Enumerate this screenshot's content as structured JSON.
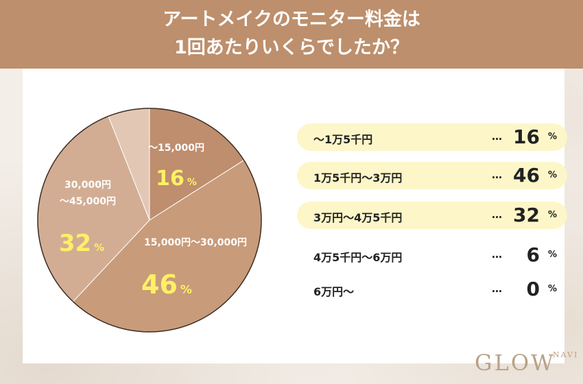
{
  "header": {
    "title_line1": "アートメイクのモニター料金は",
    "title_line2": "1回あたりいくらでしたか？"
  },
  "colors": {
    "header": "#bd8f6c",
    "slice_15000": "#be8e6e",
    "slice_30000": "#c89b7a",
    "slice_45000": "#d2ad94",
    "slice_60000": "#e3c7b5",
    "pct_yellow": "#fff066",
    "highlight_row": "#fdf6c8"
  },
  "chart_data": {
    "type": "pie",
    "slices": [
      {
        "label": "〜15,000円",
        "value": 16
      },
      {
        "label": "15,000円〜30,000円",
        "value": 46
      },
      {
        "label": "30,000円〜45,000円",
        "value": 32
      },
      {
        "label": "",
        "value": 6
      },
      {
        "label": "",
        "value": 0
      }
    ],
    "unit": "%"
  },
  "legend": [
    {
      "label": "〜1万5千円",
      "dots": "…",
      "value": "16",
      "unit": "%",
      "highlight": true
    },
    {
      "label": "1万5千円〜3万円",
      "dots": "…",
      "value": "46",
      "unit": "%",
      "highlight": true
    },
    {
      "label": "3万円〜4万5千円",
      "dots": "…",
      "value": "32",
      "unit": "%",
      "highlight": true
    },
    {
      "label": "4万5千円〜6万円",
      "dots": "…",
      "value": "6",
      "unit": "%",
      "highlight": false
    },
    {
      "label": "6万円〜",
      "dots": "…",
      "value": "0",
      "unit": "%",
      "highlight": false
    }
  ],
  "logo": {
    "main": "GLOW",
    "sub": "NAVI"
  }
}
